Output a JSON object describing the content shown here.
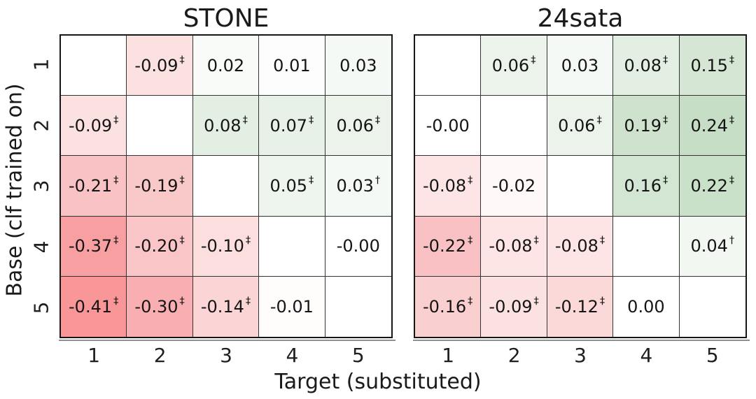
{
  "figure": {
    "background": "#ffffff",
    "text_color": "#1a1a1a",
    "grid_line_color": "#333333",
    "frame_color": "#161616",
    "spine_color": "#8f8f8f"
  },
  "chart_data": {
    "type": "heatmap",
    "xlabel": "Target (substituted)",
    "ylabel": "Base (clf trained on)",
    "x_ticks": [
      "1",
      "2",
      "3",
      "4",
      "5"
    ],
    "y_ticks": [
      "1",
      "2",
      "3",
      "4",
      "5"
    ],
    "legend_position": "none",
    "grid": true,
    "annotation_marks": {
      "dagger": "†",
      "double_dagger": "‡"
    },
    "colormap": {
      "negative_anchors": [
        [
          0,
          "#ffffff"
        ],
        [
          0.1,
          "#fcdede"
        ],
        [
          0.2,
          "#f9c5c7"
        ],
        [
          0.3,
          "#f9afb2"
        ],
        [
          0.41,
          "#f89698"
        ],
        [
          0.6,
          "#f56b70"
        ]
      ],
      "positive_anchors": [
        [
          0,
          "#ffffff"
        ],
        [
          0.08,
          "#e4efe4"
        ],
        [
          0.15,
          "#d5e6d5"
        ],
        [
          0.24,
          "#c6dec6"
        ],
        [
          0.45,
          "#a6cea6"
        ]
      ]
    },
    "panels": [
      {
        "title": "STONE",
        "cells": [
          [
            {
              "v": null,
              "t": "",
              "s": ""
            },
            {
              "v": -0.09,
              "t": "-0.09",
              "s": "‡"
            },
            {
              "v": 0.02,
              "t": "0.02",
              "s": ""
            },
            {
              "v": 0.01,
              "t": "0.01",
              "s": ""
            },
            {
              "v": 0.03,
              "t": "0.03",
              "s": ""
            }
          ],
          [
            {
              "v": -0.09,
              "t": "-0.09",
              "s": "‡"
            },
            {
              "v": null,
              "t": "",
              "s": ""
            },
            {
              "v": 0.08,
              "t": "0.08",
              "s": "‡"
            },
            {
              "v": 0.07,
              "t": "0.07",
              "s": "‡"
            },
            {
              "v": 0.06,
              "t": "0.06",
              "s": "‡"
            }
          ],
          [
            {
              "v": -0.21,
              "t": "-0.21",
              "s": "‡"
            },
            {
              "v": -0.19,
              "t": "-0.19",
              "s": "‡"
            },
            {
              "v": null,
              "t": "",
              "s": ""
            },
            {
              "v": 0.05,
              "t": "0.05",
              "s": "‡"
            },
            {
              "v": 0.03,
              "t": "0.03",
              "s": "†"
            }
          ],
          [
            {
              "v": -0.37,
              "t": "-0.37",
              "s": "‡"
            },
            {
              "v": -0.2,
              "t": "-0.20",
              "s": "‡"
            },
            {
              "v": -0.1,
              "t": "-0.10",
              "s": "‡"
            },
            {
              "v": null,
              "t": "",
              "s": ""
            },
            {
              "v": 0,
              "t": "-0.00",
              "s": ""
            }
          ],
          [
            {
              "v": -0.41,
              "t": "-0.41",
              "s": "‡"
            },
            {
              "v": -0.3,
              "t": "-0.30",
              "s": "‡"
            },
            {
              "v": -0.14,
              "t": "-0.14",
              "s": "‡"
            },
            {
              "v": -0.01,
              "t": "-0.01",
              "s": ""
            },
            {
              "v": null,
              "t": "",
              "s": ""
            }
          ]
        ]
      },
      {
        "title": "24sata",
        "cells": [
          [
            {
              "v": null,
              "t": "",
              "s": ""
            },
            {
              "v": 0.06,
              "t": "0.06",
              "s": "‡"
            },
            {
              "v": 0.03,
              "t": "0.03",
              "s": ""
            },
            {
              "v": 0.08,
              "t": "0.08",
              "s": "‡"
            },
            {
              "v": 0.15,
              "t": "0.15",
              "s": "‡"
            }
          ],
          [
            {
              "v": 0,
              "t": "-0.00",
              "s": ""
            },
            {
              "v": null,
              "t": "",
              "s": ""
            },
            {
              "v": 0.06,
              "t": "0.06",
              "s": "‡"
            },
            {
              "v": 0.19,
              "t": "0.19",
              "s": "‡"
            },
            {
              "v": 0.24,
              "t": "0.24",
              "s": "‡"
            }
          ],
          [
            {
              "v": -0.08,
              "t": "-0.08",
              "s": "‡"
            },
            {
              "v": -0.02,
              "t": "-0.02",
              "s": ""
            },
            {
              "v": null,
              "t": "",
              "s": ""
            },
            {
              "v": 0.16,
              "t": "0.16",
              "s": "‡"
            },
            {
              "v": 0.22,
              "t": "0.22",
              "s": "‡"
            }
          ],
          [
            {
              "v": -0.22,
              "t": "-0.22",
              "s": "‡"
            },
            {
              "v": -0.08,
              "t": "-0.08",
              "s": "‡"
            },
            {
              "v": -0.08,
              "t": "-0.08",
              "s": "‡"
            },
            {
              "v": null,
              "t": "",
              "s": ""
            },
            {
              "v": 0.04,
              "t": "0.04",
              "s": "†"
            }
          ],
          [
            {
              "v": -0.16,
              "t": "-0.16",
              "s": "‡"
            },
            {
              "v": -0.09,
              "t": "-0.09",
              "s": "‡"
            },
            {
              "v": -0.12,
              "t": "-0.12",
              "s": "‡"
            },
            {
              "v": 0,
              "t": "0.00",
              "s": ""
            },
            {
              "v": null,
              "t": "",
              "s": ""
            }
          ]
        ]
      }
    ]
  }
}
